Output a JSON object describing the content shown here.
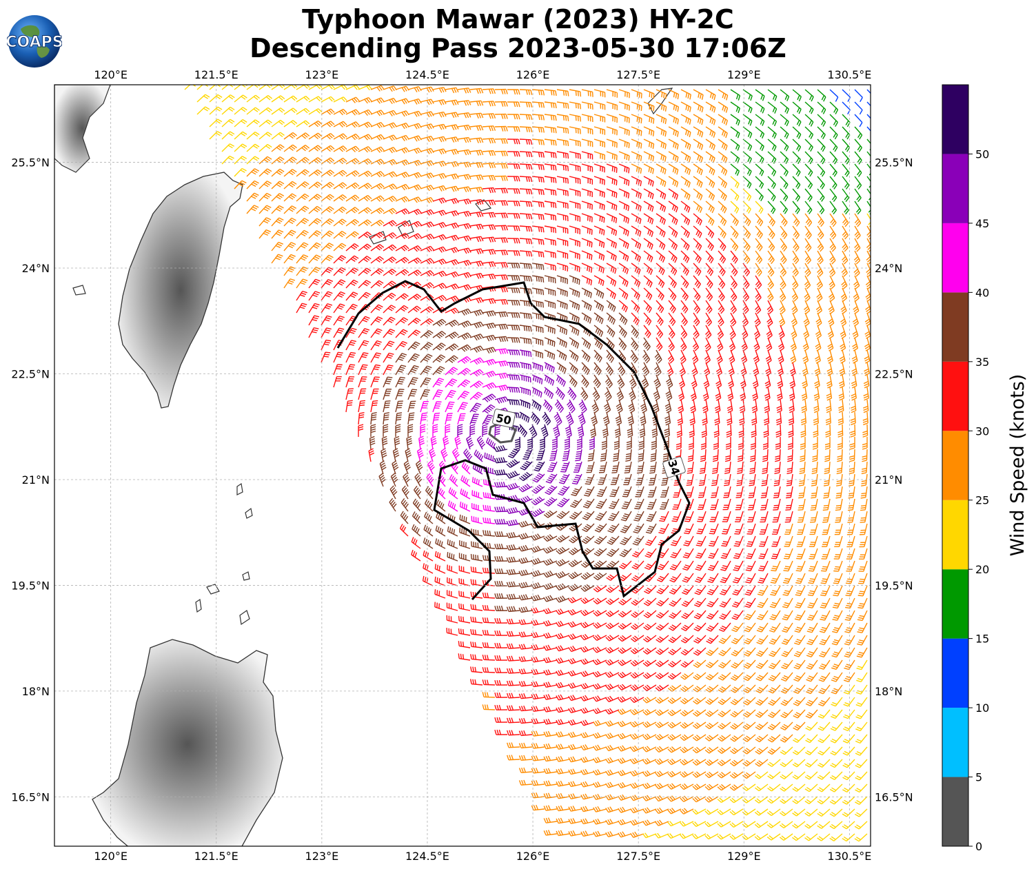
{
  "header": {
    "title_line1": "Typhoon Mawar (2023) HY-2C",
    "title_line2": "Descending Pass 2023-05-30 17:06Z",
    "logo_text": "COAPS"
  },
  "map": {
    "lon_ticks": [
      "120°E",
      "121.5°E",
      "123°E",
      "124.5°E",
      "126°E",
      "127.5°E",
      "129°E",
      "130.5°E"
    ],
    "lat_ticks": [
      "25.5°N",
      "24°N",
      "22.5°N",
      "21°N",
      "19.5°N",
      "18°N",
      "16.5°N"
    ],
    "lon_range": [
      119.2,
      130.8
    ],
    "lat_range": [
      15.8,
      26.6
    ],
    "contour_labels": [
      "50",
      "34"
    ],
    "colors": {
      "land_outline": "#333333",
      "grid": "#b0b0b0",
      "contour": "#000000"
    }
  },
  "colorbar": {
    "label": "Wind Speed (knots)",
    "ticks": [
      "0",
      "5",
      "10",
      "15",
      "20",
      "25",
      "30",
      "35",
      "40",
      "45",
      "50"
    ],
    "bins": [
      {
        "from": 0,
        "to": 5,
        "color": "#555555"
      },
      {
        "from": 5,
        "to": 10,
        "color": "#00bfff"
      },
      {
        "from": 10,
        "to": 15,
        "color": "#0040ff"
      },
      {
        "from": 15,
        "to": 20,
        "color": "#009900"
      },
      {
        "from": 20,
        "to": 25,
        "color": "#ffd700"
      },
      {
        "from": 25,
        "to": 30,
        "color": "#ff8c00"
      },
      {
        "from": 30,
        "to": 35,
        "color": "#ff1010"
      },
      {
        "from": 35,
        "to": 40,
        "color": "#7f3b22"
      },
      {
        "from": 40,
        "to": 45,
        "color": "#ff00ee"
      },
      {
        "from": 45,
        "to": 50,
        "color": "#8a00b8"
      },
      {
        "from": 50,
        "to": 55,
        "color": "#2e0061"
      }
    ]
  }
}
